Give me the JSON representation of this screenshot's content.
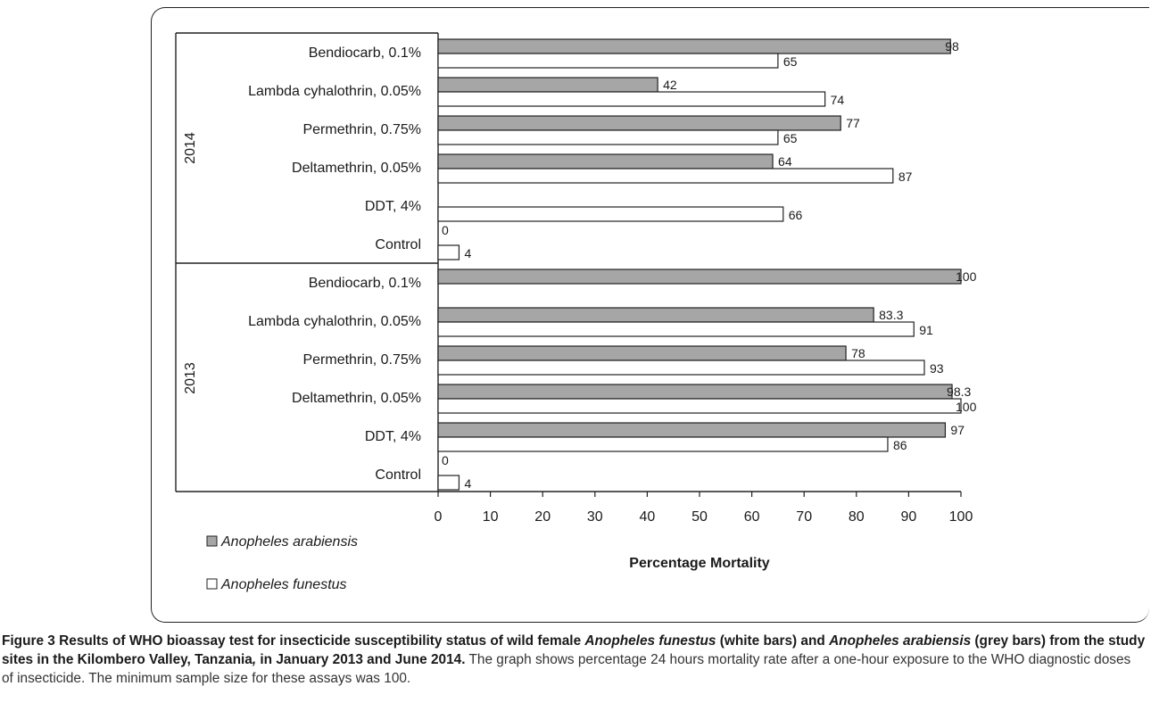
{
  "chart_data": {
    "type": "bar",
    "orientation": "horizontal",
    "groups": [
      {
        "name": "2014",
        "categories": [
          "Bendiocarb, 0.1%",
          "Lambda cyhalothrin, 0.05%",
          "Permethrin, 0.75%",
          "Deltamethrin, 0.05%",
          "DDT, 4%",
          "Control"
        ],
        "arabiensis": [
          98,
          42,
          77,
          64,
          null,
          0
        ],
        "funestus": [
          65,
          74,
          65,
          87,
          66,
          4
        ],
        "arabiensis_labels": [
          "98",
          "42",
          "77",
          "64",
          "",
          "0"
        ],
        "funestus_labels": [
          "65",
          "74",
          "65",
          "87",
          "66",
          "4"
        ]
      },
      {
        "name": "2013",
        "categories": [
          "Bendiocarb, 0.1%",
          "Lambda cyhalothrin, 0.05%",
          "Permethrin, 0.75%",
          "Deltamethrin, 0.05%",
          "DDT, 4%",
          "Control"
        ],
        "arabiensis": [
          100,
          83.3,
          78,
          98.3,
          97,
          0
        ],
        "funestus": [
          null,
          91,
          93,
          100,
          86,
          4
        ],
        "arabiensis_labels": [
          "100",
          "83.3",
          "78",
          "98.3",
          "97",
          "0"
        ],
        "funestus_labels": [
          "",
          "91",
          "93",
          "100",
          "86",
          "4"
        ]
      }
    ],
    "series": [
      {
        "name": "Anopheles arabiensis",
        "color": "#a6a6a6"
      },
      {
        "name": "Anopheles funestus",
        "color": "#ffffff"
      }
    ],
    "xlim": [
      0,
      100
    ],
    "xticks": [
      0,
      10,
      20,
      30,
      40,
      50,
      60,
      70,
      80,
      90,
      100
    ],
    "xlabel": "Percentage Mortality",
    "grid": false,
    "legend_position": "bottom-left"
  },
  "caption": {
    "bold_1": "Figure 3 Results of WHO bioassay test for insecticide susceptibility status of wild female ",
    "bold_italic_1": "Anopheles funestus",
    "bold_2": " (white bars) and ",
    "bold_italic_2": "Anopheles arabiensis",
    "bold_3": " (grey bars) from the study sites in the Kilombero Valley, Tanzania",
    "bold_italic_3": ",",
    "bold_4": " in January 2013 and June 2014.",
    "rest": " The graph shows percentage 24 hours mortality rate after a one-hour exposure to the WHO diagnostic doses of insecticide. The minimum sample size for these assays was 100."
  }
}
